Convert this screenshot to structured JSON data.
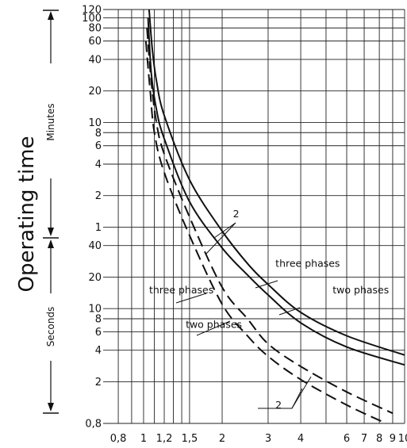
{
  "chart_data": {
    "type": "line",
    "ylabel": "Operating time",
    "y_units": [
      {
        "label": "Minutes",
        "range_seconds": [
          60,
          7200
        ]
      },
      {
        "label": "Seconds",
        "range_seconds": [
          0.8,
          60
        ]
      }
    ],
    "x_scale": "log",
    "y_scale": "log",
    "xlim": [
      0.7,
      10
    ],
    "ylim_seconds": [
      0.8,
      7200
    ],
    "x_ticks": [
      {
        "label": "0,8",
        "value": 0.8
      },
      {
        "label": "1",
        "value": 1.0
      },
      {
        "label": "1,2",
        "value": 1.2
      },
      {
        "label": "1,5",
        "value": 1.5
      },
      {
        "label": "2",
        "value": 2
      },
      {
        "label": "3",
        "value": 3
      },
      {
        "label": "4",
        "value": 4
      },
      {
        "label": "6",
        "value": 6
      },
      {
        "label": "7",
        "value": 7
      },
      {
        "label": "8",
        "value": 8
      },
      {
        "label": "9",
        "value": 9
      },
      {
        "label": "10",
        "value": 10
      }
    ],
    "y_ticks": [
      {
        "label": "120",
        "seconds": 7200
      },
      {
        "label": "100",
        "seconds": 6000
      },
      {
        "label": "80",
        "seconds": 4800
      },
      {
        "label": "60",
        "seconds": 3600
      },
      {
        "label": "40",
        "seconds": 2400
      },
      {
        "label": "20",
        "seconds": 1200
      },
      {
        "label": "10",
        "seconds": 600
      },
      {
        "label": "8",
        "seconds": 480
      },
      {
        "label": "6",
        "seconds": 360
      },
      {
        "label": "4",
        "seconds": 240
      },
      {
        "label": "2",
        "seconds": 120
      },
      {
        "label": "1",
        "seconds": 60
      },
      {
        "label": "40",
        "seconds": 40
      },
      {
        "label": "20",
        "seconds": 20
      },
      {
        "label": "10",
        "seconds": 10
      },
      {
        "label": "8",
        "seconds": 8
      },
      {
        "label": "6",
        "seconds": 6
      },
      {
        "label": "4",
        "seconds": 4
      },
      {
        "label": "2",
        "seconds": 2
      },
      {
        "label": "0,8",
        "seconds": 0.8
      }
    ],
    "x_grid_values": [
      0.8,
      0.9,
      1.0,
      1.1,
      1.2,
      1.3,
      1.4,
      1.5,
      2,
      3,
      4,
      5,
      6,
      7,
      8,
      9,
      10
    ],
    "grid": true,
    "series": [
      {
        "style": "solid",
        "x": [
          1.05,
          1.08,
          1.12,
          1.2,
          1.5,
          2.0,
          2.5,
          3.0,
          4.0,
          6.0,
          10.0
        ],
        "y": [
          7200,
          3000,
          1500,
          700,
          170,
          55,
          27,
          17,
          9.2,
          5.5,
          3.6
        ]
      },
      {
        "style": "solid",
        "x": [
          1.04,
          1.07,
          1.12,
          1.2,
          1.5,
          2.0,
          2.5,
          3.0,
          4.0,
          6.0,
          10.0
        ],
        "y": [
          6000,
          1800,
          800,
          420,
          105,
          38,
          21,
          13.5,
          7.3,
          4.3,
          2.9
        ]
      },
      {
        "style": "dashed",
        "x": [
          1.03,
          1.07,
          1.12,
          1.2,
          1.5,
          2.0,
          2.5,
          3.0,
          4.0,
          6.0,
          9.0
        ],
        "y": [
          4800,
          1500,
          600,
          300,
          75,
          16,
          8,
          4.6,
          2.8,
          1.6,
          1.0
        ]
      },
      {
        "style": "dashed",
        "x": [
          1.02,
          1.06,
          1.1,
          1.2,
          1.5,
          2.0,
          2.5,
          3.0,
          4.0,
          6.0,
          8.5
        ],
        "y": [
          3600,
          1200,
          480,
          200,
          50,
          11,
          5.5,
          3.5,
          2.1,
          1.2,
          0.8
        ]
      }
    ],
    "annotations": [
      {
        "text": "2",
        "x": 2.2,
        "y": 80
      },
      {
        "text": "three phases",
        "x": 3.2,
        "y": 27
      },
      {
        "text": "two phases",
        "x": 5.3,
        "y": 15
      },
      {
        "text": "three phases",
        "x": 1.05,
        "y": 15
      },
      {
        "text": "two phases",
        "x": 1.45,
        "y": 7
      },
      {
        "text": "2",
        "x": 3.2,
        "y": 1.2
      }
    ]
  }
}
